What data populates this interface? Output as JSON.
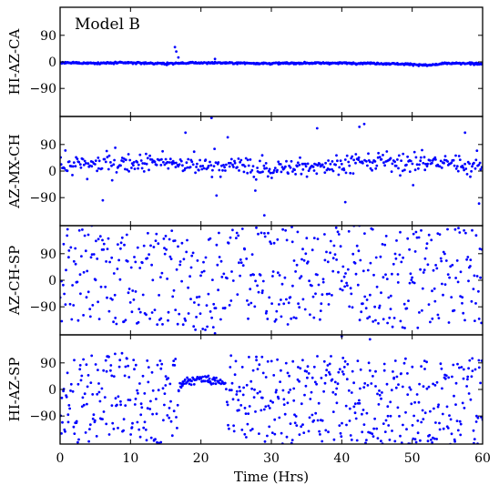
{
  "chart_data": {
    "type": "scatter",
    "title": "Model B",
    "xlabel": "Time (Hrs)",
    "xlim": [
      0,
      60
    ],
    "xticks": [
      0,
      10,
      20,
      30,
      40,
      50,
      60
    ],
    "ylim": [
      -185,
      185
    ],
    "yticks": [
      90,
      0,
      -90
    ],
    "ytick_labels": [
      "90",
      "0",
      "−90"
    ],
    "grid": false,
    "legend": "none",
    "marker_color": "#0000ff",
    "panels": [
      {
        "ylabel": "HI-AZ-CA",
        "pattern": "tight band near 0 with a few outliers",
        "anchor_points": [
          [
            16.3,
            50
          ],
          [
            16.5,
            35
          ],
          [
            16.8,
            15
          ],
          [
            22.0,
            10
          ]
        ],
        "series": [
          {
            "name": "",
            "x": [
              0,
              5,
              10,
              15,
              16,
              20,
              25,
              30,
              35,
              40,
              45,
              50,
              52,
              55,
              60
            ],
            "y": [
              -3,
              -4,
              -3,
              -6,
              -5,
              -3,
              -4,
              -5,
              -4,
              -4,
              -5,
              -8,
              -12,
              -5,
              -6
            ]
          }
        ]
      },
      {
        "ylabel": "AZ-MX-CH",
        "pattern": "moderately scattered cluster around +20 with outliers",
        "anchor_points": [
          [
            21.5,
            180
          ],
          [
            17.8,
            130
          ],
          [
            29,
            -150
          ],
          [
            36.5,
            145
          ],
          [
            40.5,
            -105
          ],
          [
            42.5,
            150
          ],
          [
            57.5,
            130
          ],
          [
            59.5,
            -110
          ]
        ],
        "series": [
          {
            "name": "",
            "x": [
              0,
              5,
              10,
              15,
              20,
              25,
              28,
              30,
              35,
              40,
              45,
              50,
              55,
              60
            ],
            "y": [
              20,
              25,
              25,
              30,
              15,
              20,
              10,
              5,
              15,
              25,
              35,
              25,
              30,
              5
            ]
          }
        ]
      },
      {
        "ylabel": "AZ-CH-SP",
        "pattern": "widely scattered over full range",
        "anchor_points": [
          [
            4.5,
            185
          ],
          [
            15,
            150
          ],
          [
            33,
            130
          ],
          [
            42.5,
            185
          ],
          [
            22,
            -180
          ]
        ],
        "series": [
          {
            "name": "",
            "x": [
              0,
              5,
              10,
              15,
              20,
              25,
              30,
              35,
              40,
              45,
              50,
              55,
              60
            ],
            "y": [
              20,
              30,
              0,
              10,
              -20,
              40,
              10,
              20,
              30,
              10,
              0,
              20,
              0
            ]
          }
        ]
      },
      {
        "ylabel": "HI-AZ-SP",
        "pattern": "widely scattered with a dense band near +30 at 17-23 hrs",
        "anchor_points": [
          [
            40,
            180
          ],
          [
            44,
            170
          ],
          [
            20,
            40
          ],
          [
            21,
            30
          ]
        ],
        "series": [
          {
            "name": "",
            "x": [
              0,
              5,
              10,
              15,
              18,
              20,
              23,
              25,
              30,
              35,
              40,
              45,
              50,
              55,
              60
            ],
            "y": [
              -60,
              -30,
              -20,
              -40,
              30,
              35,
              25,
              0,
              -50,
              -30,
              -40,
              -60,
              -40,
              -50,
              -40
            ]
          }
        ]
      }
    ]
  }
}
